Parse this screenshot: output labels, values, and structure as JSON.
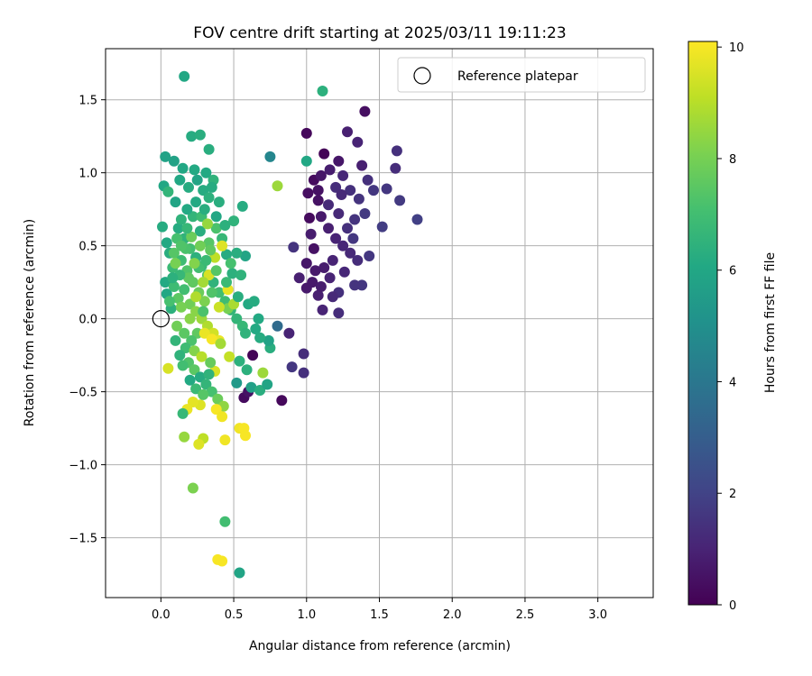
{
  "chart_data": {
    "type": "scatter",
    "title": "FOV centre drift starting at 2025/03/11 19:11:23",
    "xlabel": "Angular distance from reference (arcmin)",
    "ylabel": "Rotation from reference (arcmin)",
    "xlim": [
      -0.38,
      3.38
    ],
    "ylim": [
      -1.91,
      1.85
    ],
    "xticks": [
      0.0,
      0.5,
      1.0,
      1.5,
      2.0,
      2.5,
      3.0
    ],
    "xtick_labels": [
      "0.0",
      "0.5",
      "1.0",
      "1.5",
      "2.0",
      "2.5",
      "3.0"
    ],
    "yticks": [
      -1.5,
      -1.0,
      -0.5,
      0.0,
      0.5,
      1.0,
      1.5
    ],
    "ytick_labels": [
      "−1.5",
      "−1.0",
      "−0.5",
      "0.0",
      "0.5",
      "1.0",
      "1.5"
    ],
    "grid": true,
    "colormap": "viridis",
    "colorbar": {
      "label": "Hours from first FF file",
      "range": [
        0,
        10.1
      ],
      "ticks": [
        0,
        2,
        4,
        6,
        8,
        10
      ],
      "tick_labels": [
        "0",
        "2",
        "4",
        "6",
        "8",
        "10"
      ]
    },
    "legend": {
      "placement": "top-right",
      "entries": [
        {
          "label": "Reference platepar",
          "marker": "open-circle"
        }
      ]
    },
    "reference_point": {
      "x": 0.0,
      "y": 0.0
    },
    "points": [
      {
        "x": 1.4,
        "y": 1.42,
        "h": 0.4
      },
      {
        "x": 1.0,
        "y": 1.27,
        "h": 0.2
      },
      {
        "x": 1.28,
        "y": 1.28,
        "h": 0.9
      },
      {
        "x": 1.35,
        "y": 1.21,
        "h": 1.0
      },
      {
        "x": 1.12,
        "y": 1.13,
        "h": 0.1
      },
      {
        "x": 1.22,
        "y": 1.08,
        "h": 0.6
      },
      {
        "x": 1.38,
        "y": 1.05,
        "h": 0.9
      },
      {
        "x": 1.62,
        "y": 1.15,
        "h": 1.4
      },
      {
        "x": 1.61,
        "y": 1.03,
        "h": 1.3
      },
      {
        "x": 1.55,
        "y": 0.89,
        "h": 1.6
      },
      {
        "x": 1.64,
        "y": 0.81,
        "h": 1.7
      },
      {
        "x": 1.76,
        "y": 0.68,
        "h": 1.9
      },
      {
        "x": 1.52,
        "y": 0.63,
        "h": 1.8
      },
      {
        "x": 1.43,
        "y": 0.43,
        "h": 1.6
      },
      {
        "x": 1.38,
        "y": 0.23,
        "h": 1.6
      },
      {
        "x": 1.33,
        "y": 0.23,
        "h": 1.5
      },
      {
        "x": 1.22,
        "y": 0.18,
        "h": 1.4
      },
      {
        "x": 1.22,
        "y": 0.04,
        "h": 1.3
      },
      {
        "x": 1.08,
        "y": 0.16,
        "h": 0.9
      },
      {
        "x": 1.11,
        "y": 0.06,
        "h": 1.0
      },
      {
        "x": 1.04,
        "y": 0.25,
        "h": 0.7
      },
      {
        "x": 0.95,
        "y": 0.28,
        "h": 0.9
      },
      {
        "x": 0.91,
        "y": 0.49,
        "h": 1.5
      },
      {
        "x": 1.05,
        "y": 0.48,
        "h": 0.5
      },
      {
        "x": 1.02,
        "y": 0.69,
        "h": 0.3
      },
      {
        "x": 1.01,
        "y": 0.86,
        "h": 0.4
      },
      {
        "x": 1.05,
        "y": 0.95,
        "h": 0.3
      },
      {
        "x": 1.08,
        "y": 0.81,
        "h": 0.5
      },
      {
        "x": 1.1,
        "y": 0.7,
        "h": 0.7
      },
      {
        "x": 1.15,
        "y": 0.62,
        "h": 0.9
      },
      {
        "x": 1.2,
        "y": 0.55,
        "h": 1.0
      },
      {
        "x": 1.25,
        "y": 0.5,
        "h": 1.1
      },
      {
        "x": 1.3,
        "y": 0.45,
        "h": 1.2
      },
      {
        "x": 1.35,
        "y": 0.4,
        "h": 1.3
      },
      {
        "x": 1.18,
        "y": 0.4,
        "h": 1.0
      },
      {
        "x": 1.12,
        "y": 0.35,
        "h": 0.8
      },
      {
        "x": 1.06,
        "y": 0.33,
        "h": 0.7
      },
      {
        "x": 1.0,
        "y": 0.38,
        "h": 0.6
      },
      {
        "x": 1.03,
        "y": 0.58,
        "h": 0.8
      },
      {
        "x": 1.15,
        "y": 0.78,
        "h": 1.2
      },
      {
        "x": 1.2,
        "y": 0.9,
        "h": 1.3
      },
      {
        "x": 1.25,
        "y": 0.98,
        "h": 1.1
      },
      {
        "x": 1.3,
        "y": 0.88,
        "h": 1.4
      },
      {
        "x": 1.36,
        "y": 0.82,
        "h": 1.5
      },
      {
        "x": 1.42,
        "y": 0.95,
        "h": 1.4
      },
      {
        "x": 1.46,
        "y": 0.88,
        "h": 1.6
      },
      {
        "x": 1.4,
        "y": 0.72,
        "h": 1.7
      },
      {
        "x": 1.33,
        "y": 0.68,
        "h": 1.5
      },
      {
        "x": 1.28,
        "y": 0.62,
        "h": 1.4
      },
      {
        "x": 1.22,
        "y": 0.72,
        "h": 1.2
      },
      {
        "x": 1.1,
        "y": 0.98,
        "h": 0.6
      },
      {
        "x": 1.16,
        "y": 1.02,
        "h": 0.8
      },
      {
        "x": 1.26,
        "y": 0.32,
        "h": 1.1
      },
      {
        "x": 1.16,
        "y": 0.28,
        "h": 1.0
      },
      {
        "x": 1.0,
        "y": 0.21,
        "h": 0.7
      },
      {
        "x": 1.1,
        "y": 0.22,
        "h": 0.8
      },
      {
        "x": 1.18,
        "y": 0.15,
        "h": 1.2
      },
      {
        "x": 1.08,
        "y": 0.88,
        "h": 0.5
      },
      {
        "x": 1.32,
        "y": 0.55,
        "h": 1.6
      },
      {
        "x": 1.24,
        "y": 0.85,
        "h": 1.2
      },
      {
        "x": 0.98,
        "y": -0.24,
        "h": 1.3
      },
      {
        "x": 0.88,
        "y": -0.1,
        "h": 1.0
      },
      {
        "x": 0.9,
        "y": -0.33,
        "h": 1.6
      },
      {
        "x": 0.98,
        "y": -0.37,
        "h": 1.4
      },
      {
        "x": 0.83,
        "y": -0.56,
        "h": 0.2
      },
      {
        "x": 0.63,
        "y": -0.25,
        "h": 0.1
      },
      {
        "x": 0.57,
        "y": -0.54,
        "h": 0.3
      },
      {
        "x": 0.6,
        "y": -0.5,
        "h": 0.5
      },
      {
        "x": 0.8,
        "y": -0.05,
        "h": 3.5
      },
      {
        "x": 0.75,
        "y": 1.11,
        "h": 4.6
      },
      {
        "x": 1.11,
        "y": 1.56,
        "h": 6.4
      },
      {
        "x": 1.0,
        "y": 1.08,
        "h": 6.0
      },
      {
        "x": 0.16,
        "y": 1.66,
        "h": 6.0
      },
      {
        "x": 0.21,
        "y": 1.25,
        "h": 6.2
      },
      {
        "x": 0.27,
        "y": 1.26,
        "h": 6.3
      },
      {
        "x": 0.33,
        "y": 1.16,
        "h": 6.3
      },
      {
        "x": 0.03,
        "y": 1.11,
        "h": 5.8
      },
      {
        "x": 0.09,
        "y": 1.08,
        "h": 5.8
      },
      {
        "x": 0.15,
        "y": 1.03,
        "h": 6.0
      },
      {
        "x": 0.23,
        "y": 1.02,
        "h": 6.1
      },
      {
        "x": 0.36,
        "y": 0.95,
        "h": 6.5
      },
      {
        "x": 0.02,
        "y": 0.91,
        "h": 6.0
      },
      {
        "x": 0.05,
        "y": 0.87,
        "h": 6.6
      },
      {
        "x": 0.1,
        "y": 0.8,
        "h": 5.9
      },
      {
        "x": 0.29,
        "y": 0.88,
        "h": 6.2
      },
      {
        "x": 0.33,
        "y": 0.83,
        "h": 6.4
      },
      {
        "x": 0.38,
        "y": 0.7,
        "h": 6.0
      },
      {
        "x": 0.5,
        "y": 0.67,
        "h": 6.5
      },
      {
        "x": 0.56,
        "y": 0.77,
        "h": 6.2
      },
      {
        "x": 0.01,
        "y": 0.63,
        "h": 6.2
      },
      {
        "x": 0.04,
        "y": 0.52,
        "h": 6.1
      },
      {
        "x": 0.06,
        "y": 0.45,
        "h": 6.3
      },
      {
        "x": 0.08,
        "y": 0.35,
        "h": 6.8
      },
      {
        "x": 0.03,
        "y": 0.25,
        "h": 6.1
      },
      {
        "x": 0.04,
        "y": 0.17,
        "h": 6.0
      },
      {
        "x": 0.07,
        "y": 0.07,
        "h": 6.4
      },
      {
        "x": 0.12,
        "y": 0.62,
        "h": 6.2
      },
      {
        "x": 0.16,
        "y": 0.55,
        "h": 6.5
      },
      {
        "x": 0.2,
        "y": 0.48,
        "h": 7.0
      },
      {
        "x": 0.24,
        "y": 0.42,
        "h": 6.4
      },
      {
        "x": 0.28,
        "y": 0.36,
        "h": 6.8
      },
      {
        "x": 0.32,
        "y": 0.3,
        "h": 7.2
      },
      {
        "x": 0.36,
        "y": 0.25,
        "h": 6.5
      },
      {
        "x": 0.4,
        "y": 0.18,
        "h": 7.0
      },
      {
        "x": 0.44,
        "y": 0.12,
        "h": 6.9
      },
      {
        "x": 0.48,
        "y": 0.06,
        "h": 6.6
      },
      {
        "x": 0.52,
        "y": 0.0,
        "h": 6.6
      },
      {
        "x": 0.56,
        "y": -0.05,
        "h": 6.7
      },
      {
        "x": 0.6,
        "y": 0.1,
        "h": 6.1
      },
      {
        "x": 0.64,
        "y": 0.12,
        "h": 6.2
      },
      {
        "x": 0.67,
        "y": 0.0,
        "h": 6.1
      },
      {
        "x": 0.58,
        "y": 0.43,
        "h": 5.9
      },
      {
        "x": 0.49,
        "y": 0.31,
        "h": 6.4
      },
      {
        "x": 0.45,
        "y": 0.44,
        "h": 6.2
      },
      {
        "x": 0.42,
        "y": 0.55,
        "h": 6.7
      },
      {
        "x": 0.38,
        "y": 0.62,
        "h": 7.2
      },
      {
        "x": 0.33,
        "y": 0.52,
        "h": 7.4
      },
      {
        "x": 0.27,
        "y": 0.6,
        "h": 6.3
      },
      {
        "x": 0.22,
        "y": 0.7,
        "h": 6.6
      },
      {
        "x": 0.18,
        "y": 0.75,
        "h": 6.1
      },
      {
        "x": 0.14,
        "y": 0.68,
        "h": 6.5
      },
      {
        "x": 0.11,
        "y": 0.55,
        "h": 7.1
      },
      {
        "x": 0.09,
        "y": 0.45,
        "h": 7.4
      },
      {
        "x": 0.14,
        "y": 0.4,
        "h": 6.9
      },
      {
        "x": 0.18,
        "y": 0.33,
        "h": 7.3
      },
      {
        "x": 0.22,
        "y": 0.25,
        "h": 7.6
      },
      {
        "x": 0.26,
        "y": 0.18,
        "h": 7.8
      },
      {
        "x": 0.3,
        "y": 0.12,
        "h": 8.1
      },
      {
        "x": 0.16,
        "y": 0.2,
        "h": 7.0
      },
      {
        "x": 0.12,
        "y": 0.14,
        "h": 7.5
      },
      {
        "x": 0.2,
        "y": 0.1,
        "h": 7.9
      },
      {
        "x": 0.24,
        "y": 0.05,
        "h": 8.3
      },
      {
        "x": 0.28,
        "y": 0.0,
        "h": 8.6
      },
      {
        "x": 0.32,
        "y": -0.05,
        "h": 8.9
      },
      {
        "x": 0.36,
        "y": -0.1,
        "h": 9.4
      },
      {
        "x": 0.4,
        "y": -0.15,
        "h": 9.8
      },
      {
        "x": 0.25,
        "y": -0.1,
        "h": 7.6
      },
      {
        "x": 0.21,
        "y": -0.15,
        "h": 7.2
      },
      {
        "x": 0.17,
        "y": -0.2,
        "h": 6.9
      },
      {
        "x": 0.13,
        "y": -0.25,
        "h": 6.5
      },
      {
        "x": 0.19,
        "y": -0.3,
        "h": 7.3
      },
      {
        "x": 0.23,
        "y": -0.35,
        "h": 7.5
      },
      {
        "x": 0.27,
        "y": -0.4,
        "h": 6.2
      },
      {
        "x": 0.31,
        "y": -0.45,
        "h": 6.6
      },
      {
        "x": 0.35,
        "y": -0.5,
        "h": 7.1
      },
      {
        "x": 0.39,
        "y": -0.55,
        "h": 7.8
      },
      {
        "x": 0.43,
        "y": -0.6,
        "h": 8.4
      },
      {
        "x": 0.38,
        "y": -0.62,
        "h": 10.0
      },
      {
        "x": 0.42,
        "y": -0.67,
        "h": 9.9
      },
      {
        "x": 0.27,
        "y": -0.59,
        "h": 9.6
      },
      {
        "x": 0.22,
        "y": -0.57,
        "h": 9.7
      },
      {
        "x": 0.18,
        "y": -0.62,
        "h": 9.8
      },
      {
        "x": 0.15,
        "y": -0.65,
        "h": 6.7
      },
      {
        "x": 0.16,
        "y": -0.81,
        "h": 8.5
      },
      {
        "x": 0.29,
        "y": -0.82,
        "h": 9.1
      },
      {
        "x": 0.26,
        "y": -0.86,
        "h": 9.6
      },
      {
        "x": 0.44,
        "y": -0.83,
        "h": 9.9
      },
      {
        "x": 0.54,
        "y": -0.75,
        "h": 9.9
      },
      {
        "x": 0.57,
        "y": -0.75,
        "h": 10.0
      },
      {
        "x": 0.58,
        "y": -0.8,
        "h": 10.0
      },
      {
        "x": 0.22,
        "y": -1.16,
        "h": 8.1
      },
      {
        "x": 0.44,
        "y": -1.39,
        "h": 7.0
      },
      {
        "x": 0.39,
        "y": -1.65,
        "h": 10.0
      },
      {
        "x": 0.42,
        "y": -1.66,
        "h": 10.0
      },
      {
        "x": 0.54,
        "y": -1.74,
        "h": 5.9
      },
      {
        "x": 0.05,
        "y": -0.34,
        "h": 9.5
      },
      {
        "x": 0.47,
        "y": -0.26,
        "h": 9.2
      },
      {
        "x": 0.37,
        "y": -0.36,
        "h": 9.5
      },
      {
        "x": 0.52,
        "y": -0.44,
        "h": 5.4
      },
      {
        "x": 0.62,
        "y": -0.47,
        "h": 5.7
      },
      {
        "x": 0.68,
        "y": -0.49,
        "h": 6.3
      },
      {
        "x": 0.73,
        "y": -0.45,
        "h": 5.9
      },
      {
        "x": 0.7,
        "y": -0.37,
        "h": 8.6
      },
      {
        "x": 0.75,
        "y": -0.2,
        "h": 6.3
      },
      {
        "x": 0.74,
        "y": -0.15,
        "h": 5.8
      },
      {
        "x": 0.68,
        "y": -0.13,
        "h": 6.2
      },
      {
        "x": 0.54,
        "y": -0.29,
        "h": 6.4
      },
      {
        "x": 0.59,
        "y": -0.35,
        "h": 6.4
      },
      {
        "x": 0.65,
        "y": -0.07,
        "h": 6.1
      },
      {
        "x": 0.58,
        "y": -0.1,
        "h": 6.5
      },
      {
        "x": 0.8,
        "y": 0.91,
        "h": 8.6
      },
      {
        "x": 0.42,
        "y": 0.5,
        "h": 9.6
      },
      {
        "x": 0.37,
        "y": 0.42,
        "h": 9.1
      },
      {
        "x": 0.46,
        "y": 0.2,
        "h": 9.8
      },
      {
        "x": 0.33,
        "y": 0.3,
        "h": 9.5
      },
      {
        "x": 0.29,
        "y": 0.25,
        "h": 8.7
      },
      {
        "x": 0.24,
        "y": 0.15,
        "h": 8.9
      },
      {
        "x": 0.2,
        "y": 0.0,
        "h": 8.3
      },
      {
        "x": 0.3,
        "y": -0.1,
        "h": 9.8
      },
      {
        "x": 0.35,
        "y": -0.14,
        "h": 10.0
      },
      {
        "x": 0.41,
        "y": -0.17,
        "h": 8.7
      },
      {
        "x": 0.46,
        "y": 0.07,
        "h": 8.0
      },
      {
        "x": 0.5,
        "y": 0.1,
        "h": 8.8
      },
      {
        "x": 0.4,
        "y": 0.08,
        "h": 9.3
      },
      {
        "x": 0.29,
        "y": 0.05,
        "h": 7.2
      },
      {
        "x": 0.23,
        "y": -0.22,
        "h": 8.2
      },
      {
        "x": 0.28,
        "y": -0.26,
        "h": 9.0
      },
      {
        "x": 0.34,
        "y": -0.3,
        "h": 7.7
      },
      {
        "x": 0.16,
        "y": -0.1,
        "h": 7.5
      },
      {
        "x": 0.11,
        "y": -0.05,
        "h": 7.9
      },
      {
        "x": 0.14,
        "y": 0.08,
        "h": 8.0
      },
      {
        "x": 0.19,
        "y": 0.28,
        "h": 7.6
      },
      {
        "x": 0.26,
        "y": 0.35,
        "h": 7.0
      },
      {
        "x": 0.31,
        "y": 0.4,
        "h": 6.8
      },
      {
        "x": 0.35,
        "y": 0.18,
        "h": 7.3
      },
      {
        "x": 0.21,
        "y": 0.56,
        "h": 7.8
      },
      {
        "x": 0.17,
        "y": 0.48,
        "h": 7.2
      },
      {
        "x": 0.13,
        "y": 0.3,
        "h": 6.7
      },
      {
        "x": 0.09,
        "y": 0.22,
        "h": 6.9
      },
      {
        "x": 0.28,
        "y": 0.7,
        "h": 6.9
      },
      {
        "x": 0.32,
        "y": 0.65,
        "h": 8.5
      },
      {
        "x": 0.24,
        "y": 0.8,
        "h": 6.1
      },
      {
        "x": 0.3,
        "y": 0.75,
        "h": 6.3
      },
      {
        "x": 0.19,
        "y": 0.9,
        "h": 6.2
      },
      {
        "x": 0.25,
        "y": 0.95,
        "h": 5.9
      },
      {
        "x": 0.13,
        "y": 0.95,
        "h": 6.0
      },
      {
        "x": 0.31,
        "y": 1.0,
        "h": 6.1
      },
      {
        "x": 0.35,
        "y": 0.9,
        "h": 6.2
      },
      {
        "x": 0.4,
        "y": 0.8,
        "h": 6.3
      },
      {
        "x": 0.44,
        "y": 0.64,
        "h": 6.4
      },
      {
        "x": 0.52,
        "y": 0.45,
        "h": 6.3
      },
      {
        "x": 0.48,
        "y": 0.38,
        "h": 7.1
      },
      {
        "x": 0.55,
        "y": 0.3,
        "h": 6.5
      },
      {
        "x": 0.53,
        "y": 0.15,
        "h": 6.3
      },
      {
        "x": 0.45,
        "y": 0.25,
        "h": 6.8
      },
      {
        "x": 0.38,
        "y": 0.33,
        "h": 7.4
      },
      {
        "x": 0.34,
        "y": 0.47,
        "h": 7.6
      },
      {
        "x": 0.27,
        "y": 0.5,
        "h": 7.9
      },
      {
        "x": 0.23,
        "y": 0.38,
        "h": 8.2
      },
      {
        "x": 0.18,
        "y": 0.62,
        "h": 6.7
      },
      {
        "x": 0.14,
        "y": 0.5,
        "h": 7.3
      },
      {
        "x": 0.1,
        "y": 0.38,
        "h": 8.0
      },
      {
        "x": 0.08,
        "y": 0.28,
        "h": 6.4
      },
      {
        "x": 0.06,
        "y": 0.12,
        "h": 7.1
      },
      {
        "x": 0.1,
        "y": -0.15,
        "h": 6.6
      },
      {
        "x": 0.15,
        "y": -0.32,
        "h": 7.0
      },
      {
        "x": 0.2,
        "y": -0.42,
        "h": 6.1
      },
      {
        "x": 0.24,
        "y": -0.48,
        "h": 6.8
      },
      {
        "x": 0.29,
        "y": -0.52,
        "h": 7.4
      },
      {
        "x": 0.33,
        "y": -0.38,
        "h": 6.5
      }
    ]
  }
}
